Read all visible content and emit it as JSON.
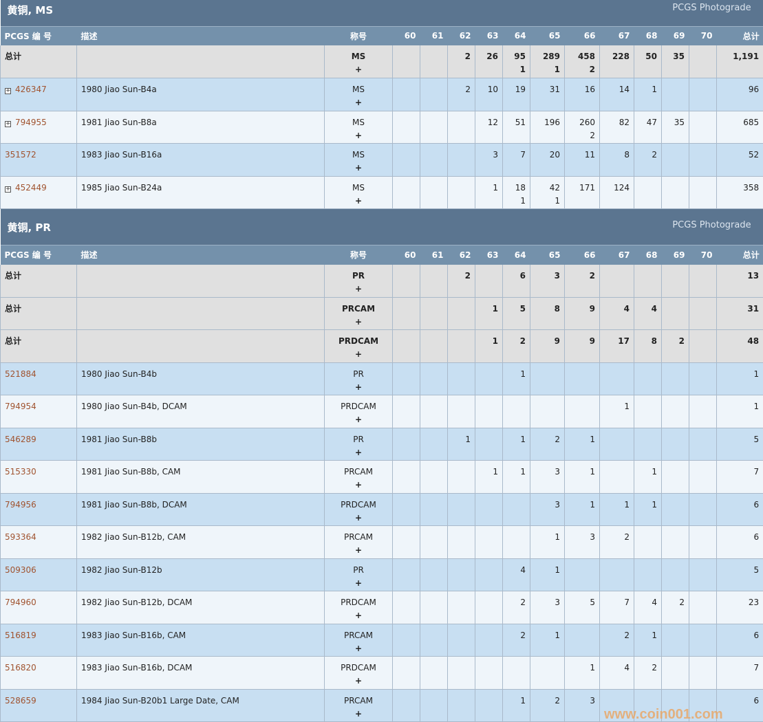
{
  "columns": {
    "id": "PCGS 编 号",
    "desc": "描述",
    "designation": "称号",
    "grades": [
      "60",
      "61",
      "62",
      "63",
      "64",
      "65",
      "66",
      "67",
      "68",
      "69",
      "70"
    ],
    "total": "总计"
  },
  "sections": [
    {
      "title": "黄铜, MS",
      "photograde": "PCGS Photograde",
      "rows": [
        {
          "type": "total",
          "id": "总计",
          "desc": "",
          "designation": "MS",
          "plus": "+",
          "cells": [
            "",
            "",
            "2",
            "26",
            "95",
            "289",
            "458",
            "228",
            "50",
            "35",
            ""
          ],
          "sub": [
            "",
            "",
            "",
            "",
            "1",
            "1",
            "2",
            "",
            "",
            "",
            ""
          ],
          "total": "1,191"
        },
        {
          "type": "data",
          "expand": true,
          "id": "426347",
          "desc": "1980 Jiao Sun-B4a",
          "designation": "MS",
          "plus": "+",
          "cells": [
            "",
            "",
            "2",
            "10",
            "19",
            "31",
            "16",
            "14",
            "1",
            "",
            ""
          ],
          "sub": [],
          "total": "96"
        },
        {
          "type": "data",
          "expand": true,
          "id": "794955",
          "desc": "1981 Jiao Sun-B8a",
          "designation": "MS",
          "plus": "+",
          "cells": [
            "",
            "",
            "",
            "12",
            "51",
            "196",
            "260",
            "82",
            "47",
            "35",
            ""
          ],
          "sub": [
            "",
            "",
            "",
            "",
            "",
            "",
            "2",
            "",
            "",
            "",
            ""
          ],
          "total": "685"
        },
        {
          "type": "data",
          "expand": false,
          "id": "351572",
          "desc": "1983 Jiao Sun-B16a",
          "designation": "MS",
          "plus": "+",
          "cells": [
            "",
            "",
            "",
            "3",
            "7",
            "20",
            "11",
            "8",
            "2",
            "",
            ""
          ],
          "sub": [],
          "total": "52"
        },
        {
          "type": "data",
          "expand": true,
          "id": "452449",
          "desc": "1985 Jiao Sun-B24a",
          "designation": "MS",
          "plus": "+",
          "cells": [
            "",
            "",
            "",
            "1",
            "18",
            "42",
            "171",
            "124",
            "",
            "",
            ""
          ],
          "sub": [
            "",
            "",
            "",
            "",
            "1",
            "1",
            "",
            "",
            "",
            "",
            ""
          ],
          "total": "358"
        }
      ]
    },
    {
      "title": "黄铜, PR",
      "photograde": "PCGS Photograde",
      "rows": [
        {
          "type": "total",
          "id": "总计",
          "desc": "",
          "designation": "PR",
          "plus": "+",
          "cells": [
            "",
            "",
            "2",
            "",
            "6",
            "3",
            "2",
            "",
            "",
            "",
            ""
          ],
          "sub": [],
          "total": "13"
        },
        {
          "type": "total",
          "id": "总计",
          "desc": "",
          "designation": "PRCAM",
          "plus": "+",
          "cells": [
            "",
            "",
            "",
            "1",
            "5",
            "8",
            "9",
            "4",
            "4",
            "",
            ""
          ],
          "sub": [],
          "total": "31"
        },
        {
          "type": "total",
          "id": "总计",
          "desc": "",
          "designation": "PRDCAM",
          "plus": "+",
          "cells": [
            "",
            "",
            "",
            "1",
            "2",
            "9",
            "9",
            "17",
            "8",
            "2",
            ""
          ],
          "sub": [],
          "total": "48"
        },
        {
          "type": "data",
          "id": "521884",
          "desc": "1980 Jiao Sun-B4b",
          "designation": "PR",
          "plus": "+",
          "cells": [
            "",
            "",
            "",
            "",
            "1",
            "",
            "",
            "",
            "",
            "",
            ""
          ],
          "sub": [],
          "total": "1"
        },
        {
          "type": "data",
          "id": "794954",
          "desc": "1980 Jiao Sun-B4b, DCAM",
          "designation": "PRDCAM",
          "plus": "+",
          "cells": [
            "",
            "",
            "",
            "",
            "",
            "",
            "",
            "1",
            "",
            "",
            ""
          ],
          "sub": [],
          "total": "1"
        },
        {
          "type": "data",
          "id": "546289",
          "desc": "1981 Jiao Sun-B8b",
          "designation": "PR",
          "plus": "+",
          "cells": [
            "",
            "",
            "1",
            "",
            "1",
            "2",
            "1",
            "",
            "",
            "",
            ""
          ],
          "sub": [],
          "total": "5"
        },
        {
          "type": "data",
          "id": "515330",
          "desc": "1981 Jiao Sun-B8b, CAM",
          "designation": "PRCAM",
          "plus": "+",
          "cells": [
            "",
            "",
            "",
            "1",
            "1",
            "3",
            "1",
            "",
            "1",
            "",
            ""
          ],
          "sub": [],
          "total": "7"
        },
        {
          "type": "data",
          "id": "794956",
          "desc": "1981 Jiao Sun-B8b, DCAM",
          "designation": "PRDCAM",
          "plus": "+",
          "cells": [
            "",
            "",
            "",
            "",
            "",
            "3",
            "1",
            "1",
            "1",
            "",
            ""
          ],
          "sub": [],
          "total": "6"
        },
        {
          "type": "data",
          "id": "593364",
          "desc": "1982 Jiao Sun-B12b, CAM",
          "designation": "PRCAM",
          "plus": "+",
          "cells": [
            "",
            "",
            "",
            "",
            "",
            "1",
            "3",
            "2",
            "",
            "",
            ""
          ],
          "sub": [],
          "total": "6"
        },
        {
          "type": "data",
          "id": "509306",
          "desc": "1982 Jiao Sun-B12b",
          "designation": "PR",
          "plus": "+",
          "cells": [
            "",
            "",
            "",
            "",
            "4",
            "1",
            "",
            "",
            "",
            "",
            ""
          ],
          "sub": [],
          "total": "5"
        },
        {
          "type": "data",
          "id": "794960",
          "desc": "1982 Jiao Sun-B12b, DCAM",
          "designation": "PRDCAM",
          "plus": "+",
          "cells": [
            "",
            "",
            "",
            "",
            "2",
            "3",
            "5",
            "7",
            "4",
            "2",
            ""
          ],
          "sub": [],
          "total": "23"
        },
        {
          "type": "data",
          "id": "516819",
          "desc": "1983 Jiao Sun-B16b, CAM",
          "designation": "PRCAM",
          "plus": "+",
          "cells": [
            "",
            "",
            "",
            "",
            "2",
            "1",
            "",
            "2",
            "1",
            "",
            ""
          ],
          "sub": [],
          "total": "6"
        },
        {
          "type": "data",
          "id": "516820",
          "desc": "1983 Jiao Sun-B16b, DCAM",
          "designation": "PRDCAM",
          "plus": "+",
          "cells": [
            "",
            "",
            "",
            "",
            "",
            "",
            "1",
            "4",
            "2",
            "",
            ""
          ],
          "sub": [],
          "total": "7"
        },
        {
          "type": "data",
          "id": "528659",
          "desc": "1984 Jiao Sun-B20b1 Large Date, CAM",
          "designation": "PRCAM",
          "plus": "+",
          "cells": [
            "",
            "",
            "",
            "",
            "1",
            "2",
            "3",
            "",
            "",
            "",
            ""
          ],
          "sub": [],
          "total": "6"
        }
      ]
    }
  ],
  "watermark": "www.coin001.com",
  "colors": {
    "header": "#5b7590",
    "column_header": "#7491ab",
    "total_row": "#e0e0e0",
    "row_odd": "#c8dff2",
    "row_even": "#eff5fa",
    "link": "#a0532f"
  }
}
